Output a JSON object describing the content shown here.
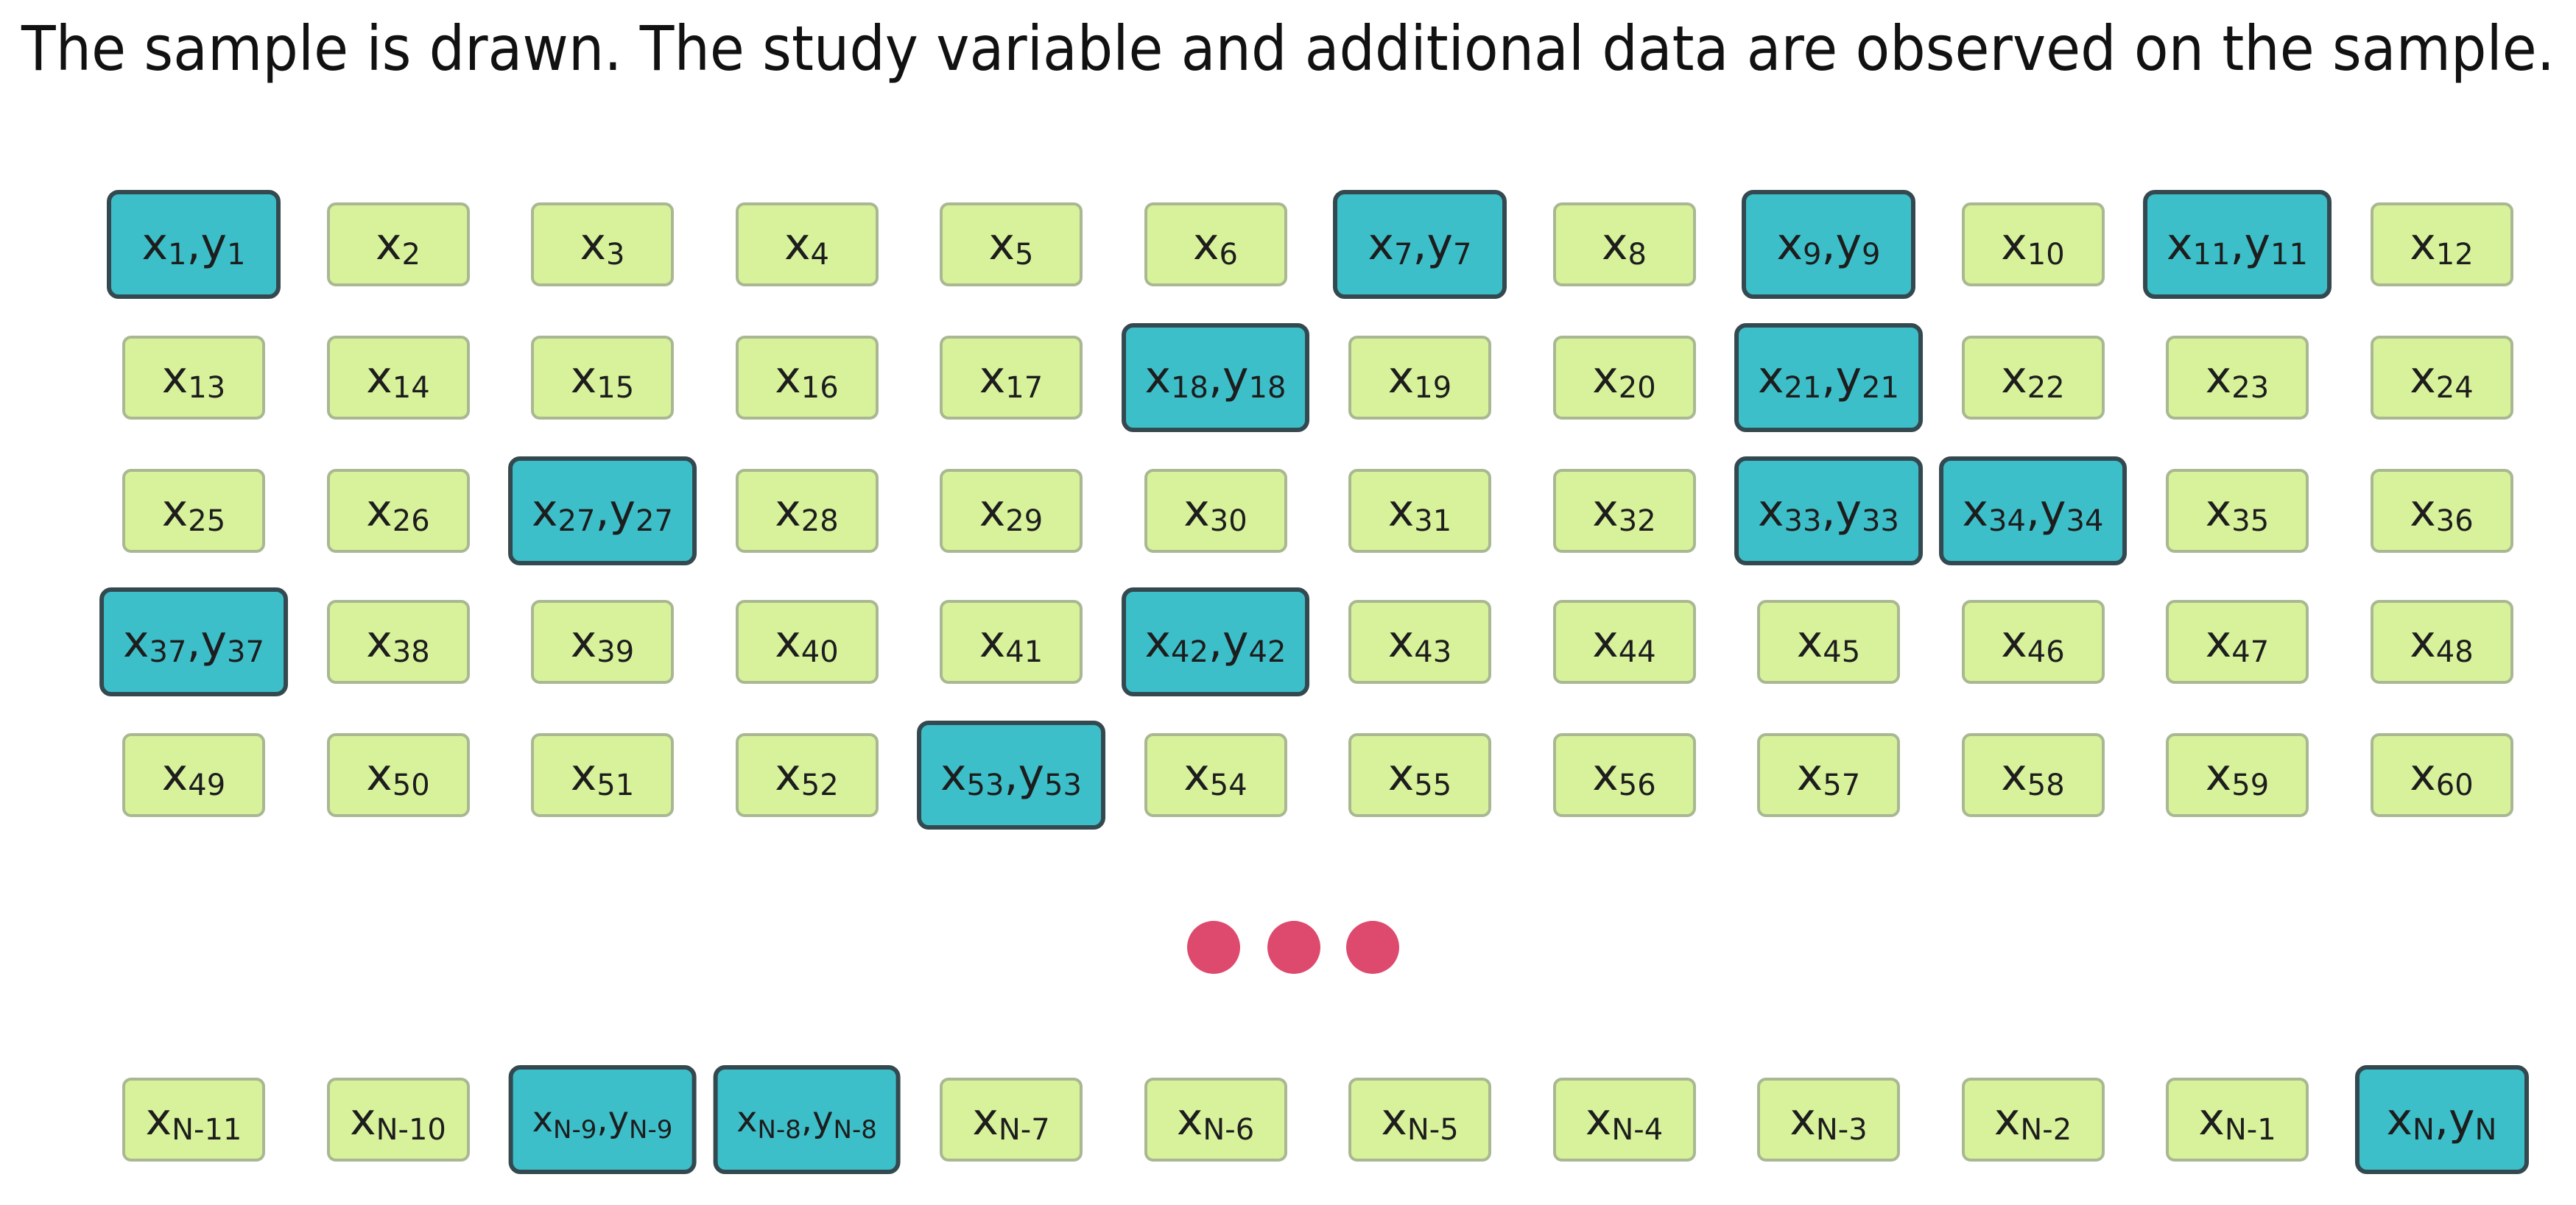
{
  "title": "The sample is drawn. The study variable and additional data are observed on the sample.",
  "rows": [
    {
      "cells": [
        {
          "parts": [
            [
              "x",
              "1"
            ],
            [
              ",y",
              "1"
            ]
          ],
          "sampled": true
        },
        {
          "parts": [
            [
              "x",
              "2"
            ]
          ],
          "sampled": false
        },
        {
          "parts": [
            [
              "x",
              "3"
            ]
          ],
          "sampled": false
        },
        {
          "parts": [
            [
              "x",
              "4"
            ]
          ],
          "sampled": false
        },
        {
          "parts": [
            [
              "x",
              "5"
            ]
          ],
          "sampled": false
        },
        {
          "parts": [
            [
              "x",
              "6"
            ]
          ],
          "sampled": false
        },
        {
          "parts": [
            [
              "x",
              "7"
            ],
            [
              ",y",
              "7"
            ]
          ],
          "sampled": true
        },
        {
          "parts": [
            [
              "x",
              "8"
            ]
          ],
          "sampled": false
        },
        {
          "parts": [
            [
              "x",
              "9"
            ],
            [
              ",y",
              "9"
            ]
          ],
          "sampled": true
        },
        {
          "parts": [
            [
              "x",
              "10"
            ]
          ],
          "sampled": false
        },
        {
          "parts": [
            [
              "x",
              "11"
            ],
            [
              ",y",
              "11"
            ]
          ],
          "sampled": true
        },
        {
          "parts": [
            [
              "x",
              "12"
            ]
          ],
          "sampled": false
        }
      ]
    },
    {
      "cells": [
        {
          "parts": [
            [
              "x",
              "13"
            ]
          ],
          "sampled": false
        },
        {
          "parts": [
            [
              "x",
              "14"
            ]
          ],
          "sampled": false
        },
        {
          "parts": [
            [
              "x",
              "15"
            ]
          ],
          "sampled": false
        },
        {
          "parts": [
            [
              "x",
              "16"
            ]
          ],
          "sampled": false
        },
        {
          "parts": [
            [
              "x",
              "17"
            ]
          ],
          "sampled": false
        },
        {
          "parts": [
            [
              "x",
              "18"
            ],
            [
              ",y",
              "18"
            ]
          ],
          "sampled": true
        },
        {
          "parts": [
            [
              "x",
              "19"
            ]
          ],
          "sampled": false
        },
        {
          "parts": [
            [
              "x",
              "20"
            ]
          ],
          "sampled": false
        },
        {
          "parts": [
            [
              "x",
              "21"
            ],
            [
              ",y",
              "21"
            ]
          ],
          "sampled": true
        },
        {
          "parts": [
            [
              "x",
              "22"
            ]
          ],
          "sampled": false
        },
        {
          "parts": [
            [
              "x",
              "23"
            ]
          ],
          "sampled": false
        },
        {
          "parts": [
            [
              "x",
              "24"
            ]
          ],
          "sampled": false
        }
      ]
    },
    {
      "cells": [
        {
          "parts": [
            [
              "x",
              "25"
            ]
          ],
          "sampled": false
        },
        {
          "parts": [
            [
              "x",
              "26"
            ]
          ],
          "sampled": false
        },
        {
          "parts": [
            [
              "x",
              "27"
            ],
            [
              ",y",
              "27"
            ]
          ],
          "sampled": true
        },
        {
          "parts": [
            [
              "x",
              "28"
            ]
          ],
          "sampled": false
        },
        {
          "parts": [
            [
              "x",
              "29"
            ]
          ],
          "sampled": false
        },
        {
          "parts": [
            [
              "x",
              "30"
            ]
          ],
          "sampled": false
        },
        {
          "parts": [
            [
              "x",
              "31"
            ]
          ],
          "sampled": false
        },
        {
          "parts": [
            [
              "x",
              "32"
            ]
          ],
          "sampled": false
        },
        {
          "parts": [
            [
              "x",
              "33"
            ],
            [
              ",y",
              "33"
            ]
          ],
          "sampled": true
        },
        {
          "parts": [
            [
              "x",
              "34"
            ],
            [
              ",y",
              "34"
            ]
          ],
          "sampled": true
        },
        {
          "parts": [
            [
              "x",
              "35"
            ]
          ],
          "sampled": false
        },
        {
          "parts": [
            [
              "x",
              "36"
            ]
          ],
          "sampled": false
        }
      ]
    },
    {
      "cells": [
        {
          "parts": [
            [
              "x",
              "37"
            ],
            [
              ",y",
              "37"
            ]
          ],
          "sampled": true
        },
        {
          "parts": [
            [
              "x",
              "38"
            ]
          ],
          "sampled": false
        },
        {
          "parts": [
            [
              "x",
              "39"
            ]
          ],
          "sampled": false
        },
        {
          "parts": [
            [
              "x",
              "40"
            ]
          ],
          "sampled": false
        },
        {
          "parts": [
            [
              "x",
              "41"
            ]
          ],
          "sampled": false
        },
        {
          "parts": [
            [
              "x",
              "42"
            ],
            [
              ",y",
              "42"
            ]
          ],
          "sampled": true
        },
        {
          "parts": [
            [
              "x",
              "43"
            ]
          ],
          "sampled": false
        },
        {
          "parts": [
            [
              "x",
              "44"
            ]
          ],
          "sampled": false
        },
        {
          "parts": [
            [
              "x",
              "45"
            ]
          ],
          "sampled": false
        },
        {
          "parts": [
            [
              "x",
              "46"
            ]
          ],
          "sampled": false
        },
        {
          "parts": [
            [
              "x",
              "47"
            ]
          ],
          "sampled": false
        },
        {
          "parts": [
            [
              "x",
              "48"
            ]
          ],
          "sampled": false
        }
      ]
    },
    {
      "cells": [
        {
          "parts": [
            [
              "x",
              "49"
            ]
          ],
          "sampled": false
        },
        {
          "parts": [
            [
              "x",
              "50"
            ]
          ],
          "sampled": false
        },
        {
          "parts": [
            [
              "x",
              "51"
            ]
          ],
          "sampled": false
        },
        {
          "parts": [
            [
              "x",
              "52"
            ]
          ],
          "sampled": false
        },
        {
          "parts": [
            [
              "x",
              "53"
            ],
            [
              ",y",
              "53"
            ]
          ],
          "sampled": true
        },
        {
          "parts": [
            [
              "x",
              "54"
            ]
          ],
          "sampled": false
        },
        {
          "parts": [
            [
              "x",
              "55"
            ]
          ],
          "sampled": false
        },
        {
          "parts": [
            [
              "x",
              "56"
            ]
          ],
          "sampled": false
        },
        {
          "parts": [
            [
              "x",
              "57"
            ]
          ],
          "sampled": false
        },
        {
          "parts": [
            [
              "x",
              "58"
            ]
          ],
          "sampled": false
        },
        {
          "parts": [
            [
              "x",
              "59"
            ]
          ],
          "sampled": false
        },
        {
          "parts": [
            [
              "x",
              "60"
            ]
          ],
          "sampled": false
        }
      ]
    },
    {
      "cells": [
        {
          "parts": [
            [
              "x",
              "N-11"
            ]
          ],
          "sampled": false
        },
        {
          "parts": [
            [
              "x",
              "N-10"
            ]
          ],
          "sampled": false
        },
        {
          "parts": [
            [
              "x",
              "N-9"
            ],
            [
              ",y",
              "N-9"
            ]
          ],
          "sampled": true
        },
        {
          "parts": [
            [
              "x",
              "N-8"
            ],
            [
              ",y",
              "N-8"
            ]
          ],
          "sampled": true
        },
        {
          "parts": [
            [
              "x",
              "N-7"
            ]
          ],
          "sampled": false
        },
        {
          "parts": [
            [
              "x",
              "N-6"
            ]
          ],
          "sampled": false
        },
        {
          "parts": [
            [
              "x",
              "N-5"
            ]
          ],
          "sampled": false
        },
        {
          "parts": [
            [
              "x",
              "N-4"
            ]
          ],
          "sampled": false
        },
        {
          "parts": [
            [
              "x",
              "N-3"
            ]
          ],
          "sampled": false
        },
        {
          "parts": [
            [
              "x",
              "N-2"
            ]
          ],
          "sampled": false
        },
        {
          "parts": [
            [
              "x",
              "N-1"
            ]
          ],
          "sampled": false
        },
        {
          "parts": [
            [
              "x",
              "N"
            ],
            [
              ",y",
              "N"
            ]
          ],
          "sampled": true
        }
      ]
    }
  ]
}
